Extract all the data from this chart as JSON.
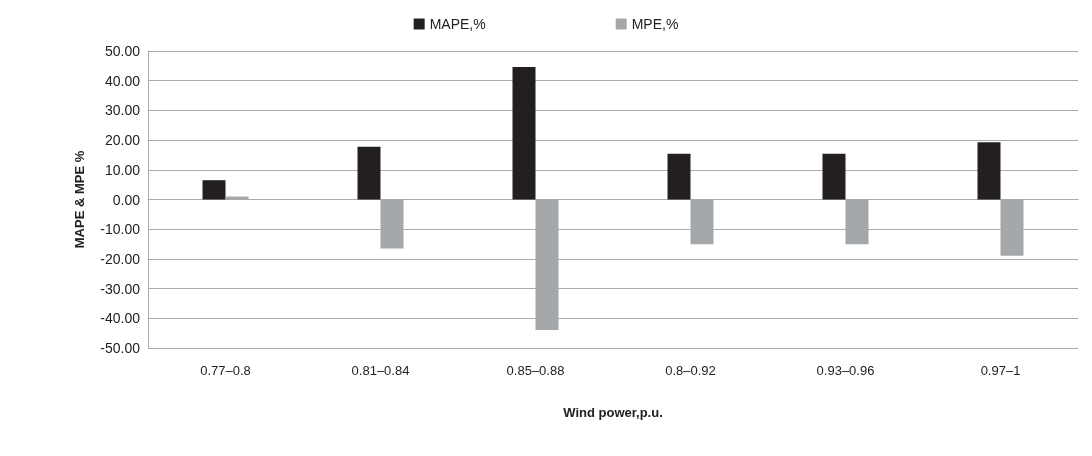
{
  "chart_data": {
    "type": "bar",
    "xlabel": "Wind power,p.u.",
    "ylabel": "MAPE & MPE %",
    "categories": [
      "0.77–0.8",
      "0.81–0.84",
      "0.85–0.88",
      "0.8–0.92",
      "0.93–0.96",
      "0.97–1"
    ],
    "series": [
      {
        "name": "MAPE,%",
        "color": "#231f20",
        "values": [
          6.5,
          17.8,
          44.6,
          15.4,
          15.4,
          19.3
        ]
      },
      {
        "name": "MPE,%",
        "color": "#a5a8aa",
        "values": [
          1.0,
          -16.5,
          -43.9,
          -15.1,
          -15.1,
          -18.9
        ]
      }
    ],
    "ylim": [
      -50,
      50
    ],
    "yticks": [
      {
        "value": -50,
        "label": "-50.00"
      },
      {
        "value": -40,
        "label": "-40.00"
      },
      {
        "value": -30,
        "label": "-30.00"
      },
      {
        "value": -20,
        "label": "-20.00"
      },
      {
        "value": -10,
        "label": "-10.00"
      },
      {
        "value": 0,
        "label": "0.00"
      },
      {
        "value": 10,
        "label": "10.00"
      },
      {
        "value": 20,
        "label": "20.00"
      },
      {
        "value": 30,
        "label": "30.00"
      },
      {
        "value": 40,
        "label": "40.00"
      },
      {
        "value": 50,
        "label": "50.00"
      }
    ],
    "grid": "y",
    "legend": "top"
  }
}
